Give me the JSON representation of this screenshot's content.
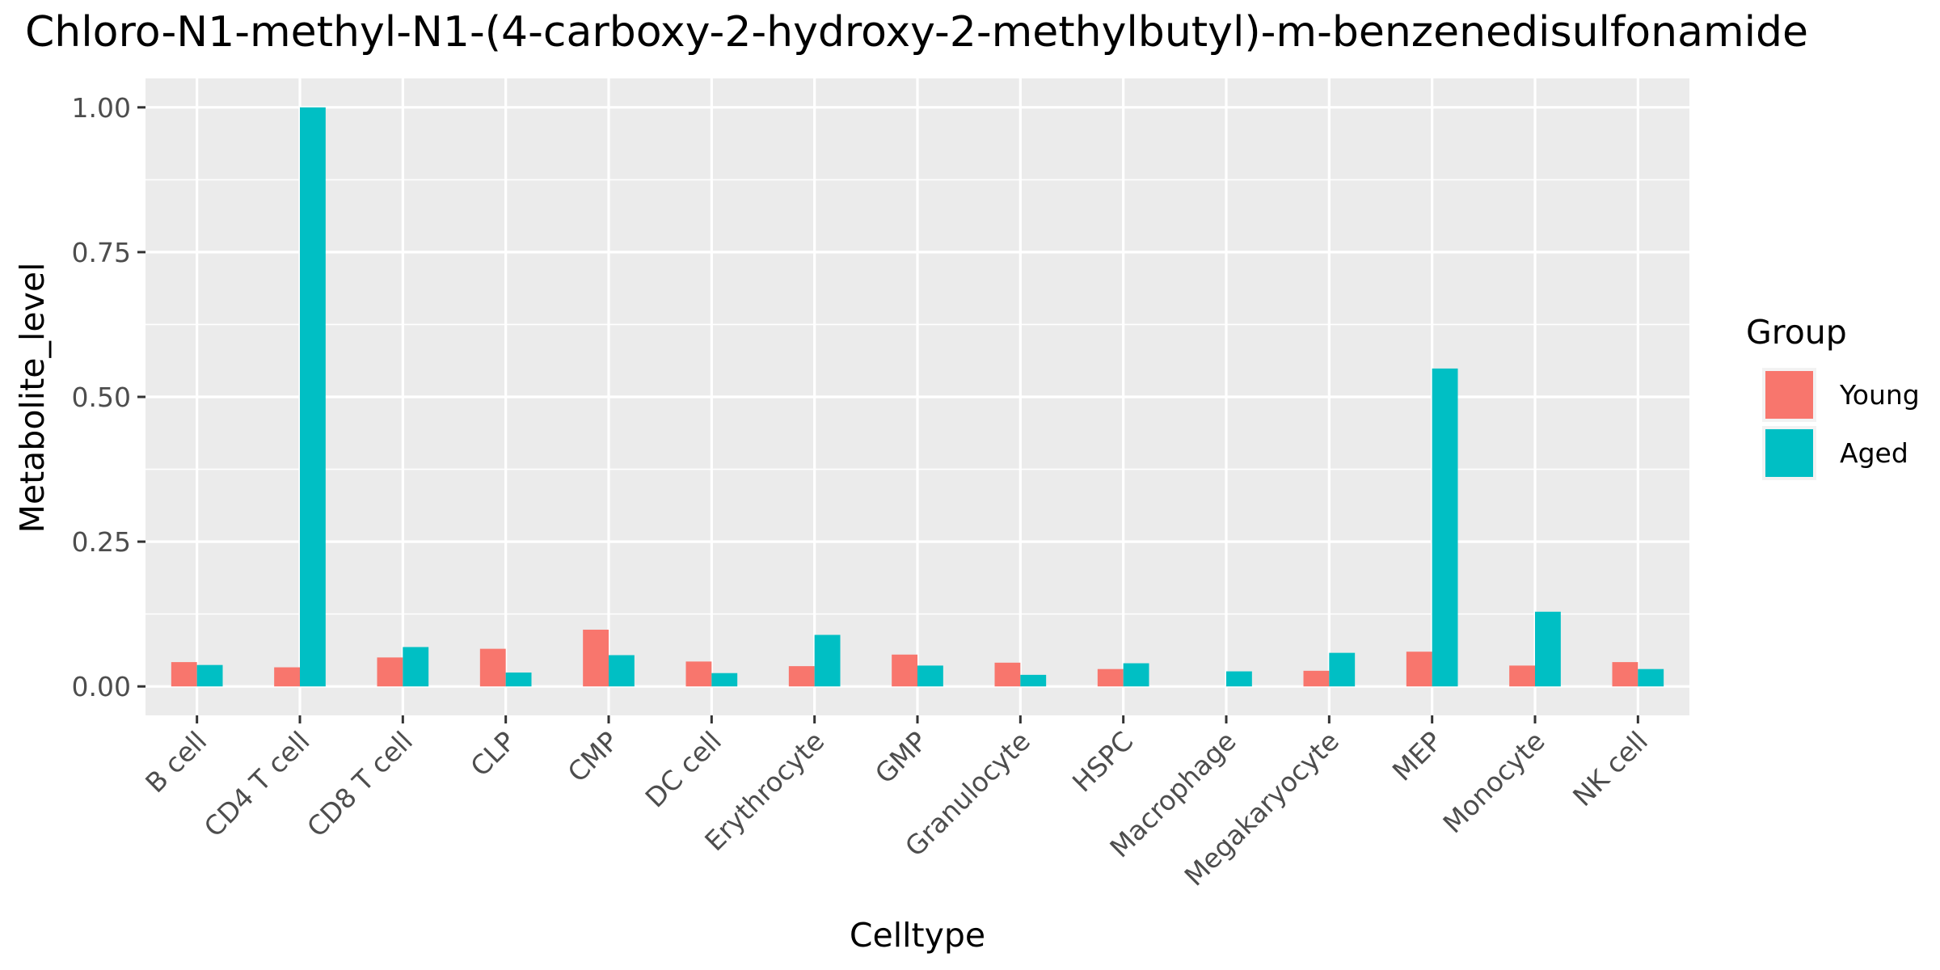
{
  "chart_data": {
    "type": "bar",
    "title": "Chloro-N1-methyl-N1-(4-carboxy-2-hydroxy-2-methylbutyl)-m-benzenedisulfonamide",
    "xlabel": "Celltype",
    "ylabel": "Metabolite_level",
    "categories": [
      "B cell",
      "CD4 T cell",
      "CD8 T cell",
      "CLP",
      "CMP",
      "DC cell",
      "Erythrocyte",
      "GMP",
      "Granulocyte",
      "HSPC",
      "Macrophage",
      "Megakaryocyte",
      "MEP",
      "Monocyte",
      "NK cell"
    ],
    "series": [
      {
        "name": "Young",
        "color": "#F8766D",
        "values": [
          0.042,
          0.033,
          0.05,
          0.065,
          0.098,
          0.043,
          0.035,
          0.055,
          0.041,
          0.03,
          null,
          0.027,
          0.06,
          0.036,
          0.042
        ]
      },
      {
        "name": "Aged",
        "color": "#00BFC4",
        "values": [
          0.037,
          1.0,
          0.068,
          0.024,
          0.054,
          0.023,
          0.089,
          0.036,
          0.02,
          0.04,
          0.026,
          0.058,
          0.549,
          0.129,
          0.03
        ]
      }
    ],
    "ylim": [
      -0.05,
      1.05
    ],
    "yticks": [
      0.0,
      0.25,
      0.5,
      0.75,
      1.0
    ],
    "ytick_labels": [
      "0.00",
      "0.25",
      "0.50",
      "0.75",
      "1.00"
    ],
    "legend": {
      "title": "Group",
      "position": "right"
    },
    "grid": true,
    "panel_background": "#EBEBEB"
  }
}
